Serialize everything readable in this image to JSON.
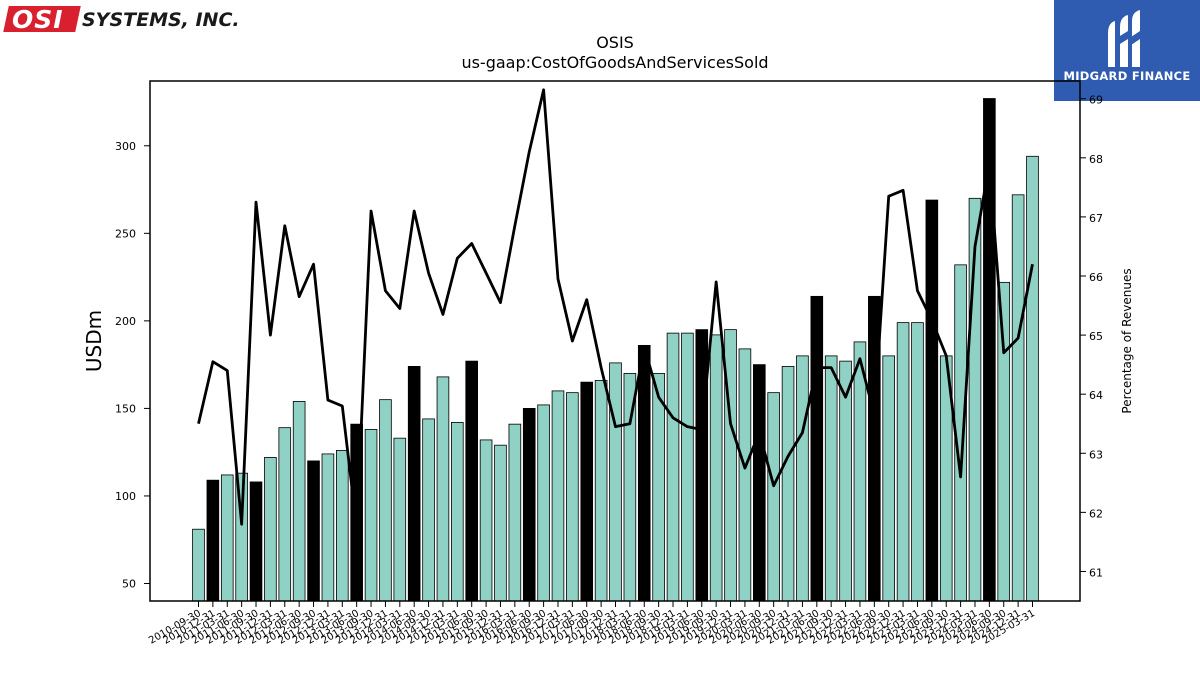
{
  "branding": {
    "osi_badge": "OSI",
    "osi_rest": "SYSTEMS, INC.",
    "midgard": "MIDGARD FINANCE"
  },
  "chart_data": {
    "type": "bar",
    "title": "OSIS",
    "subtitle": "us-gaap:CostOfGoodsAndServicesSold",
    "ylabel": "USDm",
    "y2label": "Percentage of Revenues",
    "ylim": [
      40,
      337
    ],
    "y2lim": [
      60.5,
      69.3
    ],
    "yticks": [
      50,
      100,
      150,
      200,
      250,
      300
    ],
    "y2ticks": [
      61,
      62,
      63,
      64,
      65,
      66,
      67,
      68,
      69
    ],
    "colors": {
      "bar": "#8fd1c4",
      "bar_highlight": "#000000",
      "line": "#000000"
    },
    "categories": [
      "2010-09-30",
      "2010-12-31",
      "2011-03-31",
      "2011-06-30",
      "2011-09-30",
      "2011-12-31",
      "2012-03-31",
      "2012-06-30",
      "2012-09-30",
      "2012-12-31",
      "2013-03-31",
      "2013-06-30",
      "2013-09-30",
      "2013-12-31",
      "2014-03-31",
      "2014-06-30",
      "2014-09-30",
      "2014-12-31",
      "2015-03-31",
      "2015-06-30",
      "2015-09-30",
      "2015-12-31",
      "2016-03-31",
      "2016-06-30",
      "2016-09-30",
      "2016-12-31",
      "2017-03-31",
      "2017-06-30",
      "2017-09-30",
      "2017-12-31",
      "2018-03-31",
      "2018-06-30",
      "2018-09-30",
      "2018-12-31",
      "2019-03-31",
      "2019-06-30",
      "2019-09-30",
      "2019-12-31",
      "2020-03-31",
      "2020-06-30",
      "2020-09-30",
      "2020-12-31",
      "2021-03-31",
      "2021-06-30",
      "2021-09-30",
      "2021-12-31",
      "2022-03-31",
      "2022-06-30",
      "2022-09-30",
      "2022-12-31",
      "2023-03-31",
      "2023-06-30",
      "2023-09-30",
      "2023-12-31",
      "2024-03-31",
      "2024-06-30",
      "2024-09-30",
      "2024-12-31",
      "2025-03-31"
    ],
    "series": [
      {
        "name": "",
        "kind": "bar",
        "values": [
          81,
          109,
          112,
          113,
          108,
          122,
          139,
          154,
          120,
          124,
          126,
          141,
          138,
          155,
          133,
          174,
          144,
          168,
          142,
          177,
          132,
          129,
          141,
          150,
          152,
          160,
          159,
          165,
          166,
          176,
          170,
          186,
          170,
          193,
          193,
          195,
          192,
          195,
          184,
          175,
          159,
          174,
          180,
          214,
          180,
          177,
          188,
          214,
          180,
          199,
          199,
          269,
          180,
          232,
          270,
          327,
          222,
          272,
          294
        ],
        "highlight_categories": [
          "2010-12-31",
          "2011-09-30",
          "2012-09-30",
          "2013-06-30",
          "2014-06-30",
          "2015-06-30",
          "2016-06-30",
          "2017-06-30",
          "2018-06-30",
          "2019-06-30",
          "2020-06-30",
          "2021-06-30",
          "2022-06-30",
          "2023-06-30",
          "2024-06-30"
        ]
      },
      {
        "name": "Percentage of Revenues",
        "kind": "line",
        "axis": "right",
        "values": [
          63.5,
          64.55,
          64.4,
          61.8,
          67.25,
          65.0,
          66.85,
          65.65,
          66.2,
          63.9,
          63.8,
          61.75,
          67.1,
          65.75,
          65.45,
          67.1,
          66.05,
          65.35,
          66.3,
          66.55,
          66.05,
          65.55,
          66.85,
          68.1,
          69.15,
          65.95,
          64.9,
          65.6,
          64.45,
          63.45,
          63.5,
          64.8,
          63.95,
          63.6,
          63.45,
          63.4,
          65.9,
          63.5,
          62.75,
          63.35,
          62.45,
          62.95,
          63.35,
          64.45,
          64.45,
          63.95,
          64.6,
          63.65,
          67.35,
          67.45,
          65.75,
          65.25,
          64.65,
          62.6,
          66.5,
          67.9,
          64.7,
          64.95,
          66.2
        ]
      }
    ],
    "grid": false,
    "legend": "none"
  }
}
